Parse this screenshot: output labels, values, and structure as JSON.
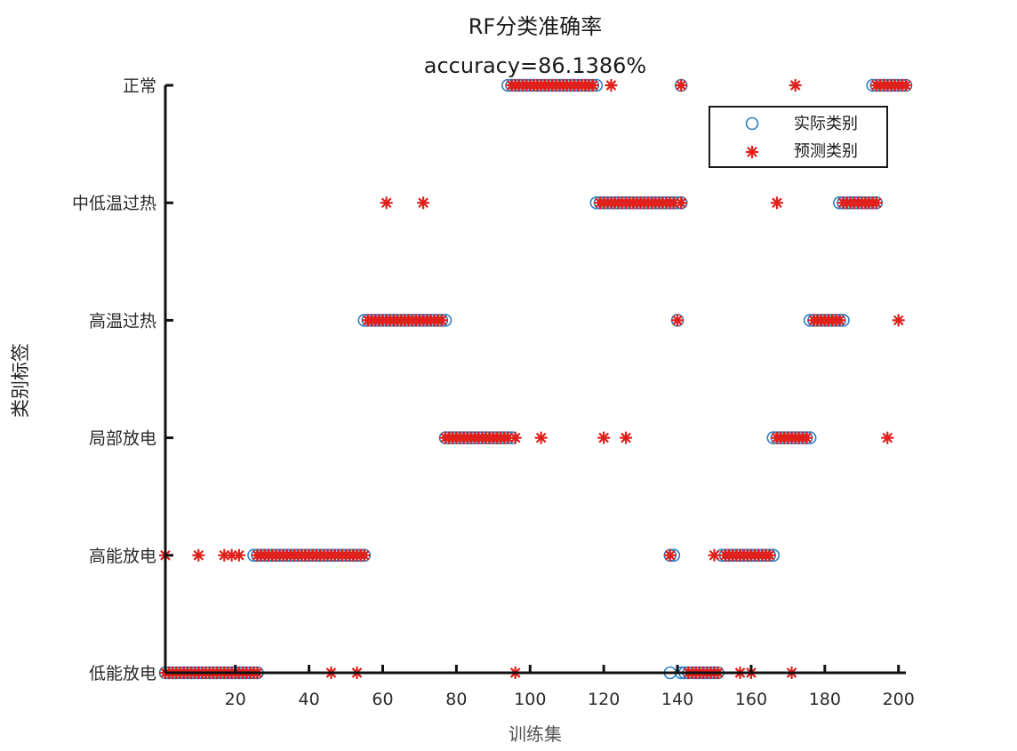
{
  "chart_data": {
    "type": "scatter",
    "title": "RF分类准确率",
    "subtitle": "accuracy=86.1386%",
    "xlabel": "训练集",
    "ylabel": "类别标签",
    "xlim": [
      1,
      202
    ],
    "x_ticks": [
      20,
      40,
      60,
      80,
      100,
      120,
      140,
      160,
      180,
      200
    ],
    "y_categories": [
      "低能放电",
      "高能放电",
      "局部放电",
      "高温过热",
      "中低温过热",
      "正常"
    ],
    "legend_position": "top-right",
    "grid": false,
    "colors": {
      "actual": "#2f7fc1",
      "predicted": "#e0201b"
    },
    "series": [
      {
        "name": "实际类别",
        "marker": "circle",
        "segments": [
          {
            "category": "低能放电",
            "from": 1,
            "to": 26
          },
          {
            "category": "高能放电",
            "from": 25,
            "to": 55
          },
          {
            "category": "高温过热",
            "from": 55,
            "to": 77
          },
          {
            "category": "局部放电",
            "from": 77,
            "to": 95
          },
          {
            "category": "正常",
            "from": 94,
            "to": 118
          },
          {
            "category": "中低温过热",
            "from": 118,
            "to": 141
          },
          {
            "category": "低能放电",
            "from": 138,
            "to": 138
          },
          {
            "category": "高能放电",
            "from": 138,
            "to": 139
          },
          {
            "category": "高温过热",
            "from": 140,
            "to": 140
          },
          {
            "category": "中低温过热",
            "from": 141,
            "to": 141
          },
          {
            "category": "正常",
            "from": 141,
            "to": 141
          },
          {
            "category": "低能放电",
            "from": 141,
            "to": 151
          },
          {
            "category": "高能放电",
            "from": 152,
            "to": 166
          },
          {
            "category": "局部放电",
            "from": 166,
            "to": 176
          },
          {
            "category": "高温过热",
            "from": 176,
            "to": 185
          },
          {
            "category": "中低温过热",
            "from": 184,
            "to": 194
          },
          {
            "category": "正常",
            "from": 193,
            "to": 202
          }
        ]
      },
      {
        "name": "预测类别",
        "marker": "star",
        "segments": [
          {
            "category": "低能放电",
            "from": 1,
            "to": 26
          },
          {
            "category": "高能放电",
            "from": 26,
            "to": 55
          },
          {
            "category": "高温过热",
            "from": 56,
            "to": 76
          },
          {
            "category": "局部放电",
            "from": 77,
            "to": 94
          },
          {
            "category": "正常",
            "from": 95,
            "to": 117
          },
          {
            "category": "中低温过热",
            "from": 119,
            "to": 139
          },
          {
            "category": "低能放电",
            "from": 143,
            "to": 151
          },
          {
            "category": "高能放电",
            "from": 153,
            "to": 165
          },
          {
            "category": "局部放电",
            "from": 167,
            "to": 175
          },
          {
            "category": "高温过热",
            "from": 177,
            "to": 184
          },
          {
            "category": "中低温过热",
            "from": 185,
            "to": 194
          },
          {
            "category": "正常",
            "from": 194,
            "to": 202
          }
        ],
        "points": [
          {
            "x": 1,
            "category": "高能放电"
          },
          {
            "x": 10,
            "category": "高能放电"
          },
          {
            "x": 17,
            "category": "高能放电"
          },
          {
            "x": 19,
            "category": "高能放电"
          },
          {
            "x": 21,
            "category": "高能放电"
          },
          {
            "x": 46,
            "category": "低能放电"
          },
          {
            "x": 53,
            "category": "低能放电"
          },
          {
            "x": 61,
            "category": "中低温过热"
          },
          {
            "x": 71,
            "category": "中低温过热"
          },
          {
            "x": 96,
            "category": "低能放电"
          },
          {
            "x": 96,
            "category": "局部放电"
          },
          {
            "x": 103,
            "category": "局部放电"
          },
          {
            "x": 120,
            "category": "局部放电"
          },
          {
            "x": 126,
            "category": "局部放电"
          },
          {
            "x": 122,
            "category": "正常"
          },
          {
            "x": 138,
            "category": "高能放电"
          },
          {
            "x": 140,
            "category": "高温过热"
          },
          {
            "x": 141,
            "category": "中低温过热"
          },
          {
            "x": 141,
            "category": "正常"
          },
          {
            "x": 150,
            "category": "高能放电"
          },
          {
            "x": 157,
            "category": "低能放电"
          },
          {
            "x": 160,
            "category": "低能放电"
          },
          {
            "x": 171,
            "category": "低能放电"
          },
          {
            "x": 167,
            "category": "中低温过热"
          },
          {
            "x": 172,
            "category": "正常"
          },
          {
            "x": 197,
            "category": "局部放电"
          },
          {
            "x": 200,
            "category": "高温过热"
          }
        ]
      }
    ]
  }
}
